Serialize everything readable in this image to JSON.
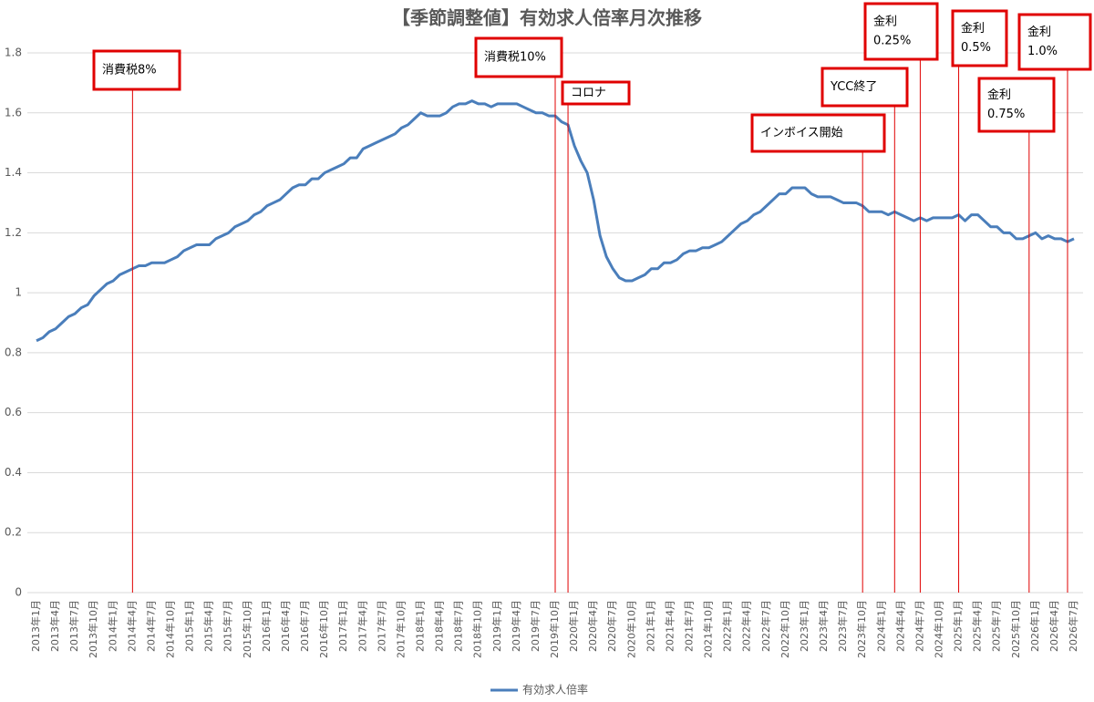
{
  "chart_data": {
    "type": "line",
    "title": "【季節調整値】有効求人倍率月次推移",
    "categories": [
      "2013年1月",
      null,
      null,
      "2013年4月",
      null,
      null,
      "2013年7月",
      null,
      null,
      "2013年10月",
      null,
      null,
      "2014年1月",
      null,
      null,
      "2014年4月",
      null,
      null,
      "2014年7月",
      null,
      null,
      "2014年10月",
      null,
      null,
      "2015年1月",
      null,
      null,
      "2015年4月",
      null,
      null,
      "2015年7月",
      null,
      null,
      "2015年10月",
      null,
      null,
      "2016年1月",
      null,
      null,
      "2016年4月",
      null,
      null,
      "2016年7月",
      null,
      null,
      "2016年10月",
      null,
      null,
      "2017年1月",
      null,
      null,
      "2017年4月",
      null,
      null,
      "2017年7月",
      null,
      null,
      "2017年10月",
      null,
      null,
      "2018年1月",
      null,
      null,
      "2018年4月",
      null,
      null,
      "2018年7月",
      null,
      null,
      "2018年10月",
      null,
      null,
      "2019年1月",
      null,
      null,
      "2019年4月",
      null,
      null,
      "2019年7月",
      null,
      null,
      "2019年10月",
      null,
      null,
      "2020年1月",
      null,
      null,
      "2020年4月",
      null,
      null,
      "2020年7月",
      null,
      null,
      "2020年10月",
      null,
      null,
      "2021年1月",
      null,
      null,
      "2021年4月",
      null,
      null,
      "2021年7月",
      null,
      null,
      "2021年10月",
      null,
      null,
      "2022年1月",
      null,
      null,
      "2022年4月",
      null,
      null,
      "2022年7月",
      null,
      null,
      "2022年10月",
      null,
      null,
      "2023年1月",
      null,
      null,
      "2023年4月",
      null,
      null,
      "2023年7月",
      null,
      null,
      "2023年10月",
      null,
      null,
      "2024年1月",
      null,
      null,
      "2024年4月",
      null,
      null,
      "2024年7月",
      null,
      null,
      "2024年10月",
      null,
      null,
      "2025年1月",
      null,
      null,
      "2025年4月",
      null,
      null,
      "2025年7月",
      null,
      null,
      "2025年10月",
      null,
      null,
      "2026年1月",
      null,
      null,
      "2026年4月",
      null,
      null,
      "2026年7月"
    ],
    "series": [
      {
        "name": "有効求人倍率",
        "color": "#4a7ebb",
        "values": [
          0.84,
          0.85,
          0.87,
          0.88,
          0.9,
          0.92,
          0.93,
          0.95,
          0.96,
          0.99,
          1.01,
          1.03,
          1.04,
          1.06,
          1.07,
          1.08,
          1.09,
          1.09,
          1.1,
          1.1,
          1.1,
          1.11,
          1.12,
          1.14,
          1.15,
          1.16,
          1.16,
          1.16,
          1.18,
          1.19,
          1.2,
          1.22,
          1.23,
          1.24,
          1.26,
          1.27,
          1.29,
          1.3,
          1.31,
          1.33,
          1.35,
          1.36,
          1.36,
          1.38,
          1.38,
          1.4,
          1.41,
          1.42,
          1.43,
          1.45,
          1.45,
          1.48,
          1.49,
          1.5,
          1.51,
          1.52,
          1.53,
          1.55,
          1.56,
          1.58,
          1.6,
          1.59,
          1.59,
          1.59,
          1.6,
          1.62,
          1.63,
          1.63,
          1.64,
          1.63,
          1.63,
          1.62,
          1.63,
          1.63,
          1.63,
          1.63,
          1.62,
          1.61,
          1.6,
          1.6,
          1.59,
          1.59,
          1.57,
          1.56,
          1.49,
          1.44,
          1.4,
          1.31,
          1.19,
          1.12,
          1.08,
          1.05,
          1.04,
          1.04,
          1.05,
          1.06,
          1.08,
          1.08,
          1.1,
          1.1,
          1.11,
          1.13,
          1.14,
          1.14,
          1.15,
          1.15,
          1.16,
          1.17,
          1.19,
          1.21,
          1.23,
          1.24,
          1.26,
          1.27,
          1.29,
          1.31,
          1.33,
          1.33,
          1.35,
          1.35,
          1.35,
          1.33,
          1.32,
          1.32,
          1.32,
          1.31,
          1.3,
          1.3,
          1.3,
          1.29,
          1.27,
          1.27,
          1.27,
          1.26,
          1.27,
          1.26,
          1.25,
          1.24,
          1.25,
          1.24,
          1.25,
          1.25,
          1.25,
          1.25,
          1.26,
          1.24,
          1.26,
          1.26,
          1.24,
          1.22,
          1.22,
          1.2,
          1.2,
          1.18,
          1.18,
          1.19,
          1.2,
          1.18,
          1.19,
          1.18,
          1.18,
          1.17,
          1.18
        ]
      }
    ],
    "ylim": [
      0,
      1.8
    ],
    "yticks": [
      0,
      0.2,
      0.4,
      0.6,
      0.8,
      1,
      1.2,
      1.4,
      1.6,
      1.8
    ],
    "grid": true,
    "legend": "bottom",
    "annotations": [
      {
        "lines": [
          "消費税8%"
        ]
      },
      {
        "lines": [
          "消費税10%"
        ]
      },
      {
        "lines": [
          "コロナ"
        ]
      },
      {
        "lines": [
          "インボイス開始"
        ]
      },
      {
        "lines": [
          "YCC終了"
        ]
      },
      {
        "lines": [
          "金利",
          "0.25%"
        ]
      },
      {
        "lines": [
          "金利",
          "0.5%"
        ]
      },
      {
        "lines": [
          "金利",
          "0.75%"
        ]
      },
      {
        "lines": [
          "金利",
          "1.0%"
        ]
      }
    ]
  }
}
